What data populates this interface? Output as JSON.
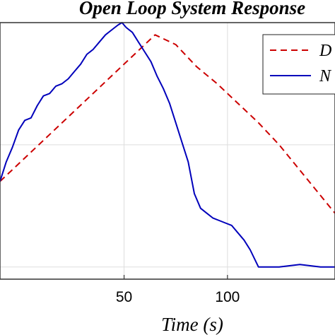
{
  "chart_data": {
    "type": "line",
    "title": "Open Loop System Response",
    "xlabel": "Time (s)",
    "ylabel": "",
    "xlim": [
      -10,
      152
    ],
    "ylim": [
      -0.05,
      1.0
    ],
    "x_ticks": [
      50,
      100
    ],
    "grid": true,
    "legend_position": "top-right",
    "legend_entries": [
      "D",
      "N"
    ],
    "series": [
      {
        "name": "D",
        "color": "#cc0000",
        "style": "dashed",
        "x": [
          -10,
          65,
          75,
          85,
          95,
          105,
          115,
          125,
          152
        ],
        "y": [
          0.35,
          0.95,
          0.91,
          0.82,
          0.75,
          0.67,
          0.59,
          0.5,
          0.22
        ]
      },
      {
        "name": "N",
        "color": "#0000bb",
        "style": "solid",
        "x": [
          -10,
          -7,
          -4,
          -1,
          2,
          5,
          8,
          11,
          14,
          17,
          20,
          23,
          26,
          29,
          32,
          35,
          38,
          41,
          44,
          47,
          49,
          51,
          54,
          57,
          60,
          63,
          66,
          69,
          72,
          75,
          78,
          81,
          84,
          87,
          90,
          93,
          96,
          99,
          102,
          105,
          108,
          111,
          115,
          125,
          135,
          145,
          152
        ],
        "y": [
          0.35,
          0.43,
          0.49,
          0.56,
          0.6,
          0.61,
          0.66,
          0.7,
          0.71,
          0.74,
          0.75,
          0.77,
          0.8,
          0.83,
          0.87,
          0.89,
          0.92,
          0.95,
          0.97,
          0.99,
          1.0,
          0.98,
          0.96,
          0.92,
          0.88,
          0.84,
          0.78,
          0.73,
          0.67,
          0.59,
          0.51,
          0.43,
          0.3,
          0.24,
          0.22,
          0.2,
          0.19,
          0.18,
          0.17,
          0.14,
          0.11,
          0.07,
          0.0,
          0.0,
          0.01,
          0.0,
          0.0
        ]
      }
    ]
  }
}
